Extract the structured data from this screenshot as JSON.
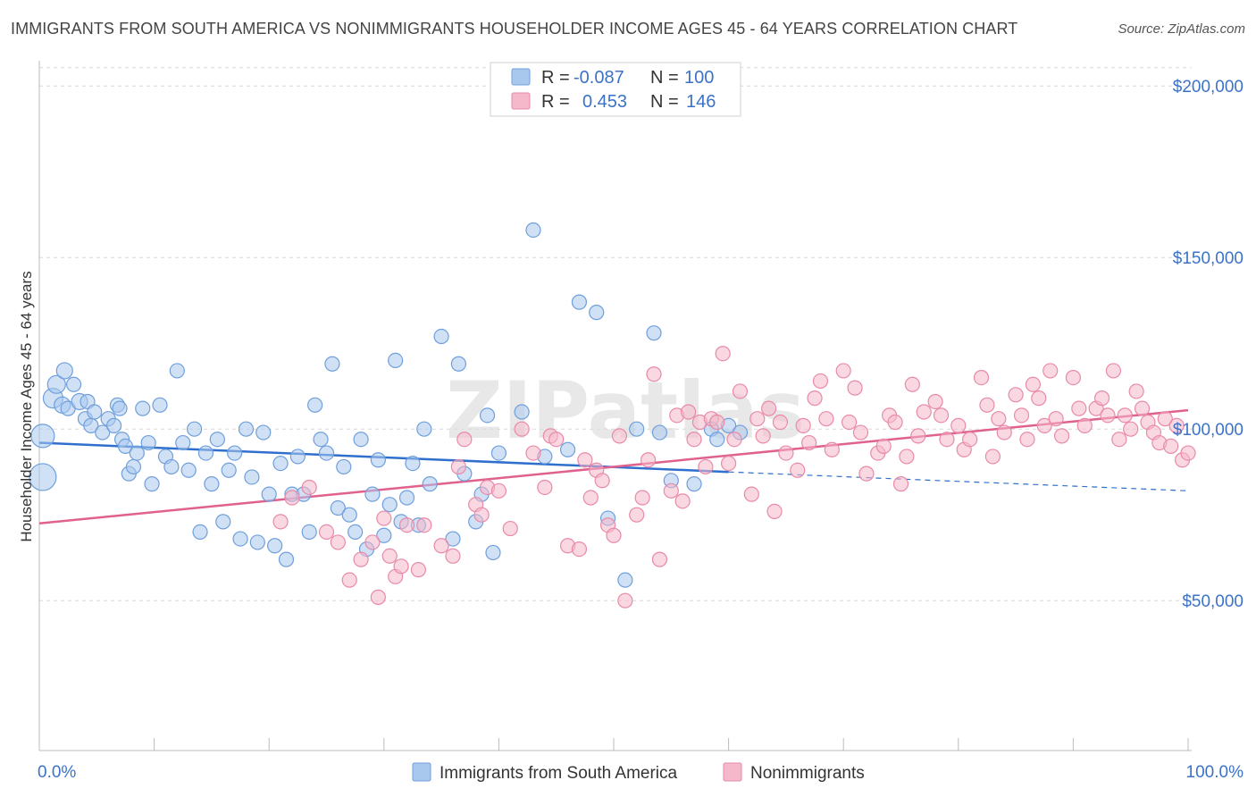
{
  "title": "IMMIGRANTS FROM SOUTH AMERICA VS NONIMMIGRANTS HOUSEHOLDER INCOME AGES 45 - 64 YEARS CORRELATION CHART",
  "source": "Source: ZipAtlas.com",
  "watermark": "ZIPatlas",
  "colors": {
    "blue_fill": "#a9c8ee",
    "blue_stroke": "#6f9fdc",
    "blue_line": "#2f6fce",
    "pink_fill": "#f5b8cb",
    "pink_stroke": "#e88aa8",
    "pink_line": "#e0618e",
    "axis_text": "#3b72c8",
    "grid": "#d9d9d9"
  },
  "legend": {
    "r_label": "R =",
    "n_label": "N =",
    "series": [
      {
        "r": "-0.087",
        "n": "100"
      },
      {
        "r": "0.453",
        "n": "146"
      }
    ]
  },
  "chart_data": {
    "type": "scatter",
    "title": "IMMIGRANTS FROM SOUTH AMERICA VS NONIMMIGRANTS HOUSEHOLDER INCOME AGES 45 - 64 YEARS CORRELATION CHART",
    "xlabel": "",
    "ylabel": "Householder Income Ages 45 - 64 years",
    "xlim": [
      0,
      100
    ],
    "ylim": [
      5000,
      210000
    ],
    "x_tick_labels": [
      "0.0%",
      "100.0%"
    ],
    "y_ticks": [
      50000,
      100000,
      150000,
      200000
    ],
    "y_tick_labels": [
      "$50,000",
      "$100,000",
      "$150,000",
      "$200,000"
    ],
    "grid": "horizontal dashed",
    "legend_placement": "top-center and bottom",
    "series": [
      {
        "name": "Immigrants from South America",
        "r": -0.087,
        "n": 100,
        "trend": {
          "x0": 0,
          "y0": 96000,
          "x1": 60,
          "y1": 87500,
          "dashed_to_x": 100,
          "dashed_to_y": 82000
        },
        "points": [
          [
            0.3,
            98000,
            13
          ],
          [
            0.3,
            86000,
            15
          ],
          [
            1.2,
            109000,
            11
          ],
          [
            1.5,
            113000,
            10
          ],
          [
            2,
            107000,
            9
          ],
          [
            2.2,
            117000,
            9
          ],
          [
            2.5,
            106000,
            8
          ],
          [
            3,
            113000,
            8
          ],
          [
            3.5,
            108000,
            9
          ],
          [
            4,
            103000,
            8
          ],
          [
            4.2,
            108000,
            8
          ],
          [
            4.5,
            101000,
            8
          ],
          [
            4.8,
            105000,
            8
          ],
          [
            5.5,
            99000,
            8
          ],
          [
            6,
            103000,
            8
          ],
          [
            6.5,
            101000,
            8
          ],
          [
            6.8,
            107000,
            8
          ],
          [
            7,
            106000,
            8
          ],
          [
            7.2,
            97000,
            8
          ],
          [
            7.5,
            95000,
            8
          ],
          [
            7.8,
            87000,
            8
          ],
          [
            8.2,
            89000,
            8
          ],
          [
            8.5,
            93000,
            8
          ],
          [
            9,
            106000,
            8
          ],
          [
            9.5,
            96000,
            8
          ],
          [
            9.8,
            84000,
            8
          ],
          [
            10.5,
            107000,
            8
          ],
          [
            11,
            92000,
            8
          ],
          [
            11.5,
            89000,
            8
          ],
          [
            12,
            117000,
            8
          ],
          [
            12.5,
            96000,
            8
          ],
          [
            13,
            88000,
            8
          ],
          [
            13.5,
            100000,
            8
          ],
          [
            14,
            70000,
            8
          ],
          [
            14.5,
            93000,
            8
          ],
          [
            15,
            84000,
            8
          ],
          [
            15.5,
            97000,
            8
          ],
          [
            16,
            73000,
            8
          ],
          [
            16.5,
            88000,
            8
          ],
          [
            17,
            93000,
            8
          ],
          [
            17.5,
            68000,
            8
          ],
          [
            18,
            100000,
            8
          ],
          [
            18.5,
            86000,
            8
          ],
          [
            19,
            67000,
            8
          ],
          [
            19.5,
            99000,
            8
          ],
          [
            20,
            81000,
            8
          ],
          [
            20.5,
            66000,
            8
          ],
          [
            21,
            90000,
            8
          ],
          [
            21.5,
            62000,
            8
          ],
          [
            22,
            81000,
            8
          ],
          [
            22.5,
            92000,
            8
          ],
          [
            23,
            81000,
            8
          ],
          [
            23.5,
            70000,
            8
          ],
          [
            24,
            107000,
            8
          ],
          [
            24.5,
            97000,
            8
          ],
          [
            25,
            93000,
            8
          ],
          [
            25.5,
            119000,
            8
          ],
          [
            26,
            77000,
            8
          ],
          [
            26.5,
            89000,
            8
          ],
          [
            27,
            75000,
            8
          ],
          [
            27.5,
            70000,
            8
          ],
          [
            28,
            97000,
            8
          ],
          [
            28.5,
            65000,
            8
          ],
          [
            29,
            81000,
            8
          ],
          [
            29.5,
            91000,
            8
          ],
          [
            30,
            69000,
            8
          ],
          [
            30.5,
            78000,
            8
          ],
          [
            31,
            120000,
            8
          ],
          [
            31.5,
            73000,
            8
          ],
          [
            32,
            80000,
            8
          ],
          [
            32.5,
            90000,
            8
          ],
          [
            33,
            72000,
            8
          ],
          [
            33.5,
            100000,
            8
          ],
          [
            34,
            84000,
            8
          ],
          [
            35,
            127000,
            8
          ],
          [
            36,
            68000,
            8
          ],
          [
            36.5,
            119000,
            8
          ],
          [
            37,
            87000,
            8
          ],
          [
            38,
            73000,
            8
          ],
          [
            38.5,
            81000,
            8
          ],
          [
            39,
            104000,
            8
          ],
          [
            39.5,
            64000,
            8
          ],
          [
            40,
            93000,
            8
          ],
          [
            42,
            105000,
            8
          ],
          [
            43,
            158000,
            8
          ],
          [
            44,
            92000,
            8
          ],
          [
            46,
            94000,
            8
          ],
          [
            47,
            137000,
            8
          ],
          [
            48.5,
            134000,
            8
          ],
          [
            49.5,
            74000,
            8
          ],
          [
            51,
            56000,
            8
          ],
          [
            52,
            100000,
            8
          ],
          [
            53.5,
            128000,
            8
          ],
          [
            54,
            99000,
            8
          ],
          [
            55,
            85000,
            8
          ],
          [
            57,
            84000,
            8
          ],
          [
            58.5,
            100000,
            8
          ],
          [
            59,
            97000,
            8
          ],
          [
            60,
            101000,
            8
          ],
          [
            61,
            99000,
            8
          ]
        ]
      },
      {
        "name": "Nonimmigrants",
        "r": 0.453,
        "n": 146,
        "trend": {
          "x0": 0,
          "y0": 72500,
          "x1": 100,
          "y1": 105500
        },
        "points": [
          [
            21,
            73000,
            8
          ],
          [
            22,
            80000,
            8
          ],
          [
            23.5,
            83000,
            8
          ],
          [
            25,
            70000,
            8
          ],
          [
            26,
            67000,
            8
          ],
          [
            27,
            56000,
            8
          ],
          [
            28,
            62000,
            8
          ],
          [
            29,
            67000,
            8
          ],
          [
            29.5,
            51000,
            8
          ],
          [
            30,
            74000,
            8
          ],
          [
            30.5,
            63000,
            8
          ],
          [
            31,
            57000,
            8
          ],
          [
            31.5,
            60000,
            8
          ],
          [
            32,
            72000,
            8
          ],
          [
            33,
            59000,
            8
          ],
          [
            33.5,
            72000,
            8
          ],
          [
            35,
            66000,
            8
          ],
          [
            36,
            63000,
            8
          ],
          [
            36.5,
            89000,
            8
          ],
          [
            37,
            97000,
            8
          ],
          [
            38,
            78000,
            8
          ],
          [
            38.5,
            75000,
            8
          ],
          [
            39,
            83000,
            8
          ],
          [
            40,
            82000,
            8
          ],
          [
            41,
            71000,
            8
          ],
          [
            42,
            100000,
            8
          ],
          [
            43,
            93000,
            8
          ],
          [
            44,
            83000,
            8
          ],
          [
            44.5,
            98000,
            8
          ],
          [
            45,
            97000,
            8
          ],
          [
            46,
            66000,
            8
          ],
          [
            47,
            65000,
            8
          ],
          [
            47.5,
            91000,
            8
          ],
          [
            48,
            80000,
            8
          ],
          [
            48.5,
            88000,
            8
          ],
          [
            49,
            85000,
            8
          ],
          [
            49.5,
            72000,
            8
          ],
          [
            50,
            69000,
            8
          ],
          [
            50.5,
            98000,
            8
          ],
          [
            51,
            50000,
            8
          ],
          [
            52,
            75000,
            8
          ],
          [
            52.5,
            80000,
            8
          ],
          [
            53,
            91000,
            8
          ],
          [
            53.5,
            116000,
            8
          ],
          [
            54,
            62000,
            8
          ],
          [
            55,
            82000,
            8
          ],
          [
            55.5,
            104000,
            8
          ],
          [
            56,
            79000,
            8
          ],
          [
            56.5,
            105000,
            8
          ],
          [
            57,
            97000,
            8
          ],
          [
            57.5,
            102000,
            8
          ],
          [
            58,
            89000,
            8
          ],
          [
            58.5,
            103000,
            8
          ],
          [
            59,
            102000,
            8
          ],
          [
            59.5,
            122000,
            8
          ],
          [
            60,
            90000,
            8
          ],
          [
            60.5,
            97000,
            8
          ],
          [
            61,
            111000,
            8
          ],
          [
            62,
            81000,
            8
          ],
          [
            62.5,
            103000,
            8
          ],
          [
            63,
            98000,
            8
          ],
          [
            63.5,
            106000,
            8
          ],
          [
            64,
            76000,
            8
          ],
          [
            64.5,
            102000,
            8
          ],
          [
            65,
            93000,
            8
          ],
          [
            66,
            88000,
            8
          ],
          [
            66.5,
            101000,
            8
          ],
          [
            67,
            96000,
            8
          ],
          [
            67.5,
            109000,
            8
          ],
          [
            68,
            114000,
            8
          ],
          [
            68.5,
            103000,
            8
          ],
          [
            69,
            94000,
            8
          ],
          [
            70,
            117000,
            8
          ],
          [
            70.5,
            102000,
            8
          ],
          [
            71,
            112000,
            8
          ],
          [
            71.5,
            99000,
            8
          ],
          [
            72,
            87000,
            8
          ],
          [
            73,
            93000,
            8
          ],
          [
            73.5,
            95000,
            8
          ],
          [
            74,
            104000,
            8
          ],
          [
            74.5,
            102000,
            8
          ],
          [
            75,
            84000,
            8
          ],
          [
            75.5,
            92000,
            8
          ],
          [
            76,
            113000,
            8
          ],
          [
            76.5,
            98000,
            8
          ],
          [
            77,
            105000,
            8
          ],
          [
            78,
            108000,
            8
          ],
          [
            78.5,
            104000,
            8
          ],
          [
            79,
            97000,
            8
          ],
          [
            80,
            101000,
            8
          ],
          [
            80.5,
            94000,
            8
          ],
          [
            81,
            97000,
            8
          ],
          [
            82,
            115000,
            8
          ],
          [
            82.5,
            107000,
            8
          ],
          [
            83,
            92000,
            8
          ],
          [
            83.5,
            103000,
            8
          ],
          [
            84,
            99000,
            8
          ],
          [
            85,
            110000,
            8
          ],
          [
            85.5,
            104000,
            8
          ],
          [
            86,
            97000,
            8
          ],
          [
            86.5,
            113000,
            8
          ],
          [
            87,
            109000,
            8
          ],
          [
            87.5,
            101000,
            8
          ],
          [
            88,
            117000,
            8
          ],
          [
            88.5,
            103000,
            8
          ],
          [
            89,
            98000,
            8
          ],
          [
            90,
            115000,
            8
          ],
          [
            90.5,
            106000,
            8
          ],
          [
            91,
            101000,
            8
          ],
          [
            92,
            106000,
            8
          ],
          [
            92.5,
            109000,
            8
          ],
          [
            93,
            104000,
            8
          ],
          [
            93.5,
            117000,
            8
          ],
          [
            94,
            97000,
            8
          ],
          [
            94.5,
            104000,
            8
          ],
          [
            95,
            100000,
            8
          ],
          [
            95.5,
            111000,
            8
          ],
          [
            96,
            106000,
            8
          ],
          [
            96.5,
            102000,
            8
          ],
          [
            97,
            99000,
            8
          ],
          [
            97.5,
            96000,
            8
          ],
          [
            98,
            103000,
            8
          ],
          [
            98.5,
            95000,
            8
          ],
          [
            99,
            101000,
            8
          ],
          [
            99.5,
            91000,
            8
          ],
          [
            100,
            93000,
            8
          ]
        ]
      }
    ]
  },
  "bottom_legend": [
    {
      "label": "Immigrants from South America"
    },
    {
      "label": "Nonimmigrants"
    }
  ]
}
